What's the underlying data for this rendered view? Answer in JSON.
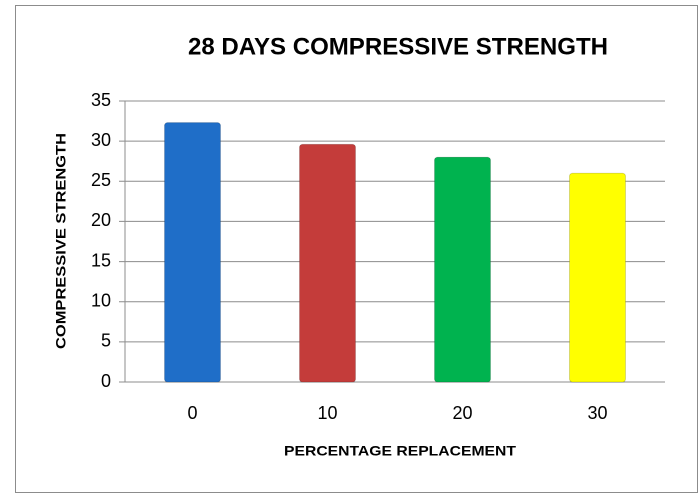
{
  "chart_data": {
    "type": "bar",
    "title": "28 DAYS COMPRESSIVE STRENGTH",
    "x_label": "PERCENTAGE REPLACEMENT",
    "y_label": "COMPRESSIVE STRENGTH",
    "categories": [
      "0",
      "10",
      "20",
      "30"
    ],
    "values": [
      32.3,
      29.6,
      28,
      26
    ],
    "colors": [
      "#1f6ec8",
      "#c43c3a",
      "#00b34f",
      "#ffff00"
    ],
    "ylim": [
      0,
      35
    ],
    "yticks": [
      0,
      5,
      10,
      15,
      20,
      25,
      30,
      35
    ],
    "grid": true
  }
}
